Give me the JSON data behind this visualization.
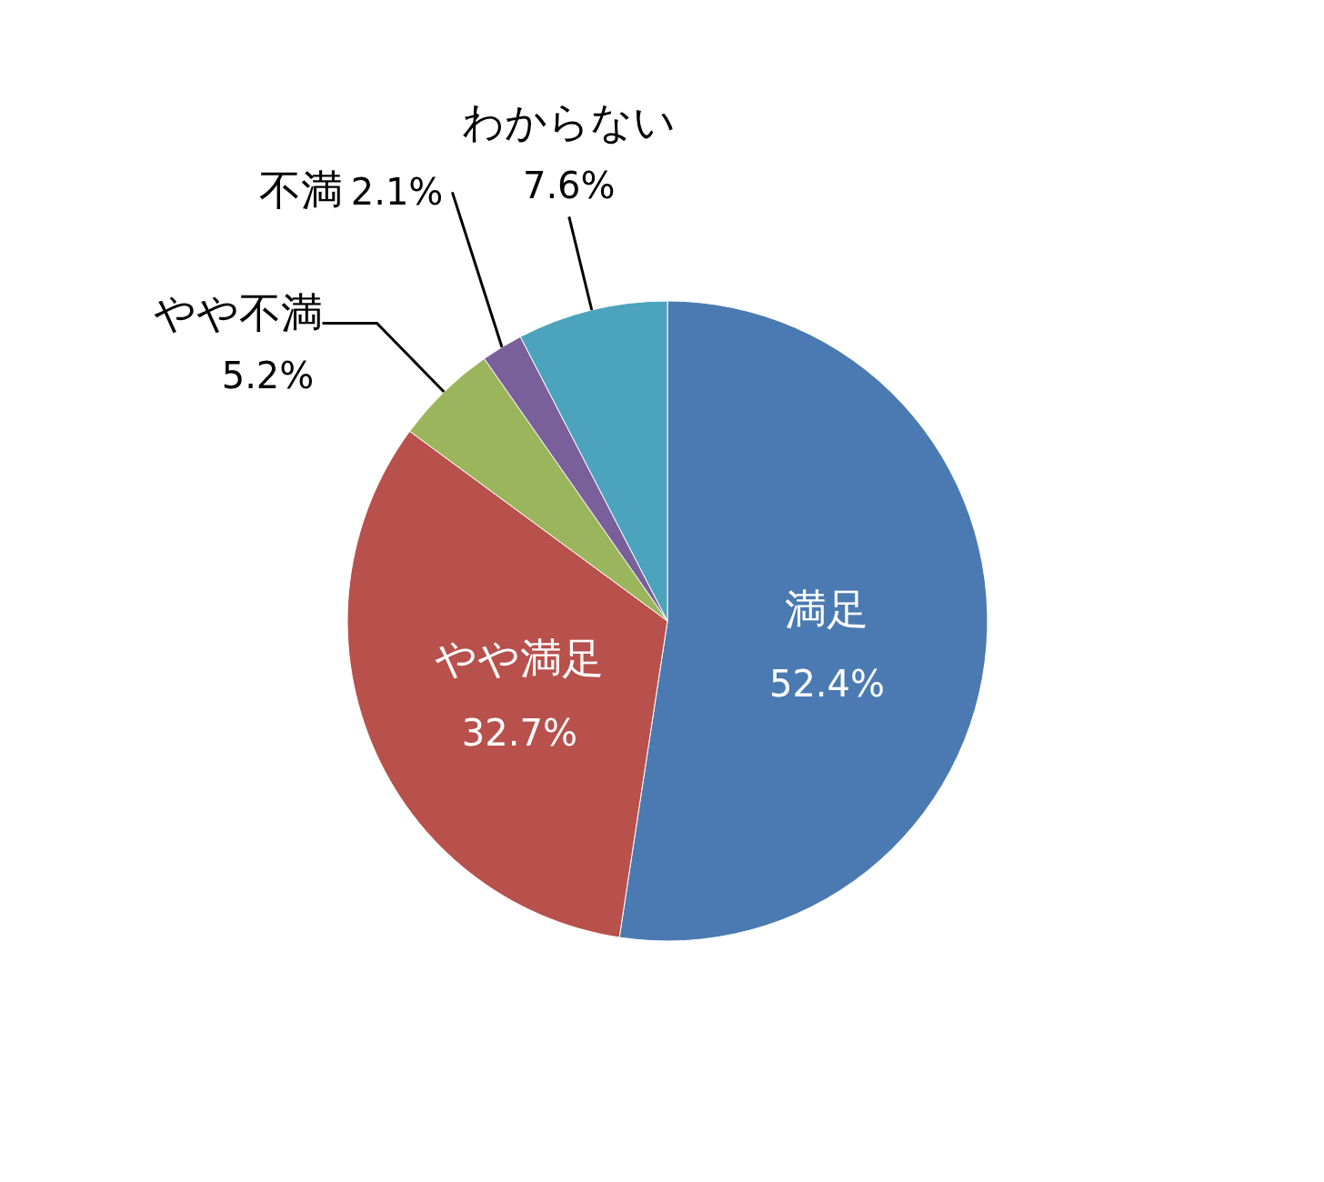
{
  "chart_data": {
    "type": "pie",
    "categories": [
      "満足",
      "やや満足",
      "やや不満",
      "不満",
      "わからない"
    ],
    "values": [
      52.4,
      32.7,
      5.2,
      2.1,
      7.6
    ],
    "colors": [
      "#4a7ab1",
      "#b8504c",
      "#9bb55c",
      "#7a609a",
      "#4ba3bd"
    ],
    "value_labels": [
      "52.4%",
      "32.7%",
      "5.2%",
      "2.1%",
      "7.6%"
    ]
  }
}
